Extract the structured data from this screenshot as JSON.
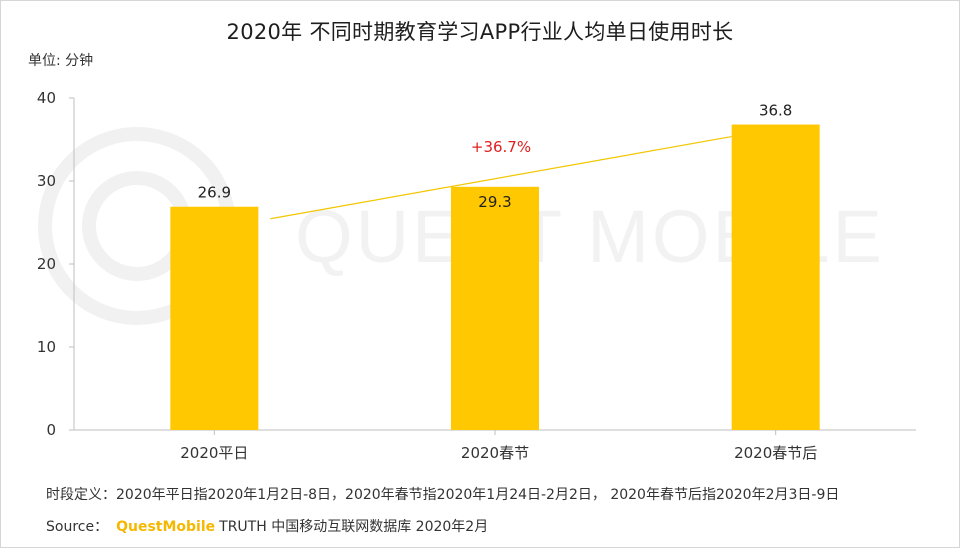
{
  "title": "2020年 不同时期教育学习APP行业人均单日使用时长",
  "unit_label": "单位: 分钟",
  "watermark": "QUEST MOBILE",
  "chart_data": {
    "type": "bar",
    "categories": [
      "2020平日",
      "2020春节",
      "2020春节后"
    ],
    "values": [
      26.9,
      29.3,
      36.8
    ],
    "value_labels": [
      "26.9",
      "29.3",
      "36.8"
    ],
    "ylim": [
      0,
      40
    ],
    "yticks": [
      "0",
      "10",
      "20",
      "30",
      "40"
    ],
    "ytick_values": [
      0,
      10,
      20,
      30,
      40
    ],
    "growth_label": "+36.7%",
    "bar_color": "#ffc800",
    "trend_color": "#f2c600",
    "growth_color": "#e02020",
    "grid": false
  },
  "footnote": "时段定义：2020年平日指2020年1月2日-8日，2020年春节指2020年1月24日-2月2日， 2020年春节后指2020年2月3日-9日",
  "source": {
    "label": "Source：",
    "brand": "QuestMobile",
    "text": "TRUTH 中国移动互联网数据库 2020年2月"
  }
}
